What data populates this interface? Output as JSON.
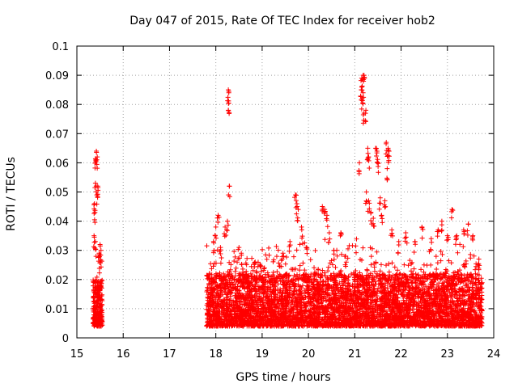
{
  "chart_data": {
    "type": "scatter",
    "title": "Day 047 of 2015, Rate Of TEC Index for receiver hob2",
    "xlabel": "GPS time / hours",
    "ylabel": "ROTI / TECUs",
    "xlim": [
      15,
      24
    ],
    "ylim": [
      0,
      0.1
    ],
    "xticks": [
      "15",
      "16",
      "17",
      "18",
      "19",
      "20",
      "21",
      "22",
      "23",
      "24"
    ],
    "yticks": [
      "0",
      "0.01",
      "0.02",
      "0.03",
      "0.04",
      "0.05",
      "0.06",
      "0.07",
      "0.08",
      "0.09",
      "0.1"
    ],
    "grid": true,
    "marker": "plus",
    "color": "#ff0000",
    "clusters": [
      {
        "x": [
          15.35,
          15.55
        ],
        "y_base": [
          0.004,
          0.02
        ],
        "density": 260
      },
      {
        "x": [
          17.8,
          23.75
        ],
        "y_base": [
          0.004,
          0.022
        ],
        "density": 5200
      }
    ],
    "highlights": [
      [
        15.42,
        0.064
      ],
      [
        15.41,
        0.061
      ],
      [
        15.44,
        0.062
      ],
      [
        15.4,
        0.053
      ],
      [
        15.45,
        0.052
      ],
      [
        15.43,
        0.049
      ],
      [
        15.38,
        0.046
      ],
      [
        15.39,
        0.043
      ],
      [
        15.37,
        0.035
      ],
      [
        15.4,
        0.033
      ],
      [
        15.5,
        0.032
      ],
      [
        15.52,
        0.03
      ],
      [
        15.48,
        0.029
      ],
      [
        17.95,
        0.033
      ],
      [
        18.0,
        0.038
      ],
      [
        18.05,
        0.042
      ],
      [
        18.1,
        0.031
      ],
      [
        18.2,
        0.038
      ],
      [
        18.25,
        0.04
      ],
      [
        18.27,
        0.085
      ],
      [
        18.28,
        0.084
      ],
      [
        18.27,
        0.078
      ],
      [
        18.29,
        0.052
      ],
      [
        18.5,
        0.031
      ],
      [
        18.55,
        0.029
      ],
      [
        18.85,
        0.026
      ],
      [
        18.95,
        0.025
      ],
      [
        19.05,
        0.024
      ],
      [
        19.45,
        0.029
      ],
      [
        19.6,
        0.033
      ],
      [
        19.72,
        0.049
      ],
      [
        19.75,
        0.046
      ],
      [
        19.78,
        0.044
      ],
      [
        19.85,
        0.038
      ],
      [
        19.95,
        0.031
      ],
      [
        20.3,
        0.045
      ],
      [
        20.35,
        0.044
      ],
      [
        20.4,
        0.042
      ],
      [
        20.45,
        0.036
      ],
      [
        20.55,
        0.03
      ],
      [
        20.7,
        0.036
      ],
      [
        20.8,
        0.028
      ],
      [
        21.15,
        0.089
      ],
      [
        21.18,
        0.09
      ],
      [
        21.2,
        0.09
      ],
      [
        21.14,
        0.085
      ],
      [
        21.18,
        0.084
      ],
      [
        21.16,
        0.082
      ],
      [
        21.2,
        0.077
      ],
      [
        21.24,
        0.078
      ],
      [
        21.1,
        0.06
      ],
      [
        21.28,
        0.065
      ],
      [
        21.3,
        0.062
      ],
      [
        21.25,
        0.05
      ],
      [
        21.3,
        0.047
      ],
      [
        21.35,
        0.043
      ],
      [
        21.4,
        0.041
      ],
      [
        21.45,
        0.065
      ],
      [
        21.48,
        0.064
      ],
      [
        21.5,
        0.06
      ],
      [
        21.55,
        0.048
      ],
      [
        21.58,
        0.042
      ],
      [
        21.68,
        0.067
      ],
      [
        21.72,
        0.065
      ],
      [
        21.74,
        0.064
      ],
      [
        21.7,
        0.058
      ],
      [
        21.65,
        0.047
      ],
      [
        21.8,
        0.037
      ],
      [
        21.95,
        0.033
      ],
      [
        22.1,
        0.036
      ],
      [
        22.3,
        0.033
      ],
      [
        22.45,
        0.038
      ],
      [
        22.65,
        0.034
      ],
      [
        22.8,
        0.037
      ],
      [
        22.88,
        0.04
      ],
      [
        23.0,
        0.035
      ],
      [
        23.1,
        0.044
      ],
      [
        23.2,
        0.035
      ],
      [
        23.35,
        0.037
      ],
      [
        23.45,
        0.039
      ],
      [
        23.55,
        0.035
      ],
      [
        23.68,
        0.027
      ]
    ]
  }
}
